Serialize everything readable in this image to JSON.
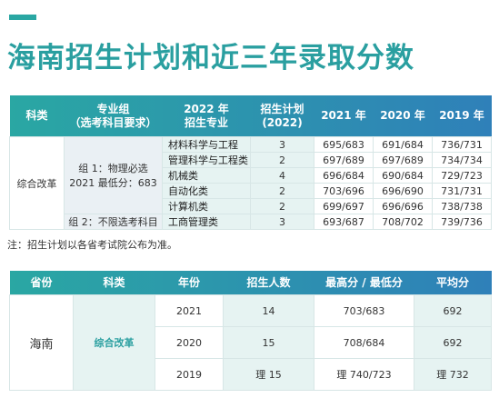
{
  "header": {
    "title": "海南招生计划和近三年录取分数"
  },
  "table1": {
    "columns": [
      [
        "科类"
      ],
      [
        "专业组",
        "（选考科目要求）"
      ],
      [
        "2022 年",
        "招生专业"
      ],
      [
        "招生计划",
        "(2022)"
      ],
      [
        "2021 年"
      ],
      [
        "2020 年"
      ],
      [
        "2019 年"
      ]
    ],
    "category": "综合改革",
    "groups": [
      [
        "组 1：物理必选",
        "2021 最低分：683"
      ],
      [
        "组 2：不限选考科目"
      ]
    ],
    "rows": [
      [
        "材料科学与工程",
        "3",
        "695/683",
        "691/684",
        "736/731"
      ],
      [
        "管理科学与工程类",
        "2",
        "697/689",
        "697/689",
        "734/734"
      ],
      [
        "机械类",
        "4",
        "696/684",
        "690/684",
        "729/723"
      ],
      [
        "自动化类",
        "2",
        "703/696",
        "696/690",
        "731/731"
      ],
      [
        "计算机类",
        "2",
        "699/697",
        "696/696",
        "738/738"
      ],
      [
        "工商管理类",
        "3",
        "693/687",
        "708/702",
        "739/736"
      ]
    ]
  },
  "note": "注：招生计划以各省考试院公布为准。",
  "table2": {
    "columns": [
      "省份",
      "科类",
      "年份",
      "招生人数",
      "最高分 / 最低分",
      "平均分"
    ],
    "province": "海南",
    "category": "综合改革",
    "rows": [
      [
        "2021",
        "14",
        "703/683",
        "692"
      ],
      [
        "2020",
        "15",
        "708/684",
        "692"
      ],
      [
        "2019",
        "理 15",
        "理 740/723",
        "理 732"
      ]
    ]
  }
}
